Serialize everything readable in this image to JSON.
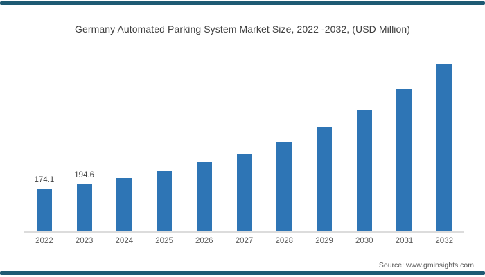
{
  "title": "Germany Automated Parking System Market Size, 2022 -2032, (USD Million)",
  "source_note": "Source: www.gminsights.com",
  "colors": {
    "bar": "#2E75B5",
    "accent": "#1E5A73",
    "axis_line": "#DCDCDC",
    "title_text": "#3F3F3F",
    "tick_text": "#595959",
    "value_label_text": "#404040",
    "background": "#FFFFFF"
  },
  "chart_data": {
    "type": "bar",
    "title": "Germany Automated Parking System Market Size, 2022 -2032, (USD Million)",
    "categories": [
      "2022",
      "2023",
      "2024",
      "2025",
      "2026",
      "2027",
      "2028",
      "2029",
      "2030",
      "2031",
      "2032"
    ],
    "values": [
      174.1,
      194.6,
      220,
      248,
      285,
      321,
      370,
      430,
      502,
      588,
      692
    ],
    "visible_value_labels": [
      "174.1",
      "194.6",
      "",
      "",
      "",
      "",
      "",
      "",
      "",
      "",
      ""
    ],
    "xlabel": "",
    "ylabel": "USD Million",
    "ylim": [
      0,
      730
    ],
    "grid": false,
    "legend": false,
    "y_axis_shown": false,
    "x_axis_line_shown": true
  }
}
